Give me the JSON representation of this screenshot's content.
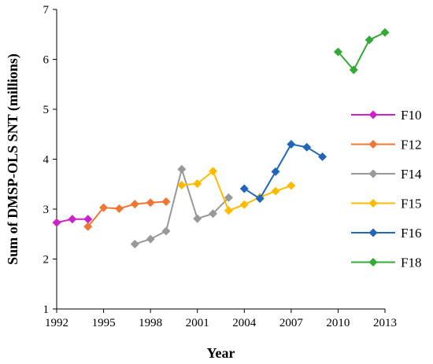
{
  "chart_data": {
    "type": "line",
    "xlabel": "Year",
    "ylabel": "Sum of DMSP-OLS SNT (millions)",
    "xlim": [
      1992,
      2013
    ],
    "ylim": [
      1,
      7
    ],
    "x_ticks": [
      "1992",
      "1995",
      "1998",
      "2001",
      "2004",
      "2007",
      "2010",
      "2013"
    ],
    "y_ticks": [
      "1",
      "2",
      "3",
      "4",
      "5",
      "6",
      "7"
    ],
    "grid": false,
    "legend_position": "right",
    "series": [
      {
        "name": "F10",
        "color": "#cc22cc",
        "points": [
          [
            1992,
            2.73
          ],
          [
            1993,
            2.8
          ],
          [
            1994,
            2.8
          ]
        ]
      },
      {
        "name": "F12",
        "color": "#ee7733",
        "points": [
          [
            1994,
            2.65
          ],
          [
            1995,
            3.03
          ],
          [
            1996,
            3.01
          ],
          [
            1997,
            3.1
          ],
          [
            1998,
            3.13
          ],
          [
            1999,
            3.15
          ]
        ]
      },
      {
        "name": "F14",
        "color": "#999999",
        "points": [
          [
            1997,
            2.3
          ],
          [
            1998,
            2.4
          ],
          [
            1999,
            2.56
          ],
          [
            2000,
            3.8
          ],
          [
            2001,
            2.81
          ],
          [
            2002,
            2.91
          ],
          [
            2003,
            3.23
          ]
        ]
      },
      {
        "name": "F15",
        "color": "#ffbb00",
        "points": [
          [
            2000,
            3.48
          ],
          [
            2001,
            3.51
          ],
          [
            2002,
            3.76
          ],
          [
            2003,
            2.97
          ],
          [
            2004,
            3.09
          ],
          [
            2005,
            3.24
          ],
          [
            2006,
            3.36
          ],
          [
            2007,
            3.47
          ]
        ]
      },
      {
        "name": "F16",
        "color": "#2266bb",
        "points": [
          [
            2004,
            3.41
          ],
          [
            2005,
            3.21
          ],
          [
            2006,
            3.75
          ],
          [
            2007,
            4.3
          ],
          [
            2008,
            4.24
          ],
          [
            2009,
            4.05
          ]
        ]
      },
      {
        "name": "F18",
        "color": "#33aa33",
        "points": [
          [
            2010,
            6.15
          ],
          [
            2011,
            5.79
          ],
          [
            2012,
            6.39
          ],
          [
            2013,
            6.54
          ]
        ]
      }
    ]
  }
}
